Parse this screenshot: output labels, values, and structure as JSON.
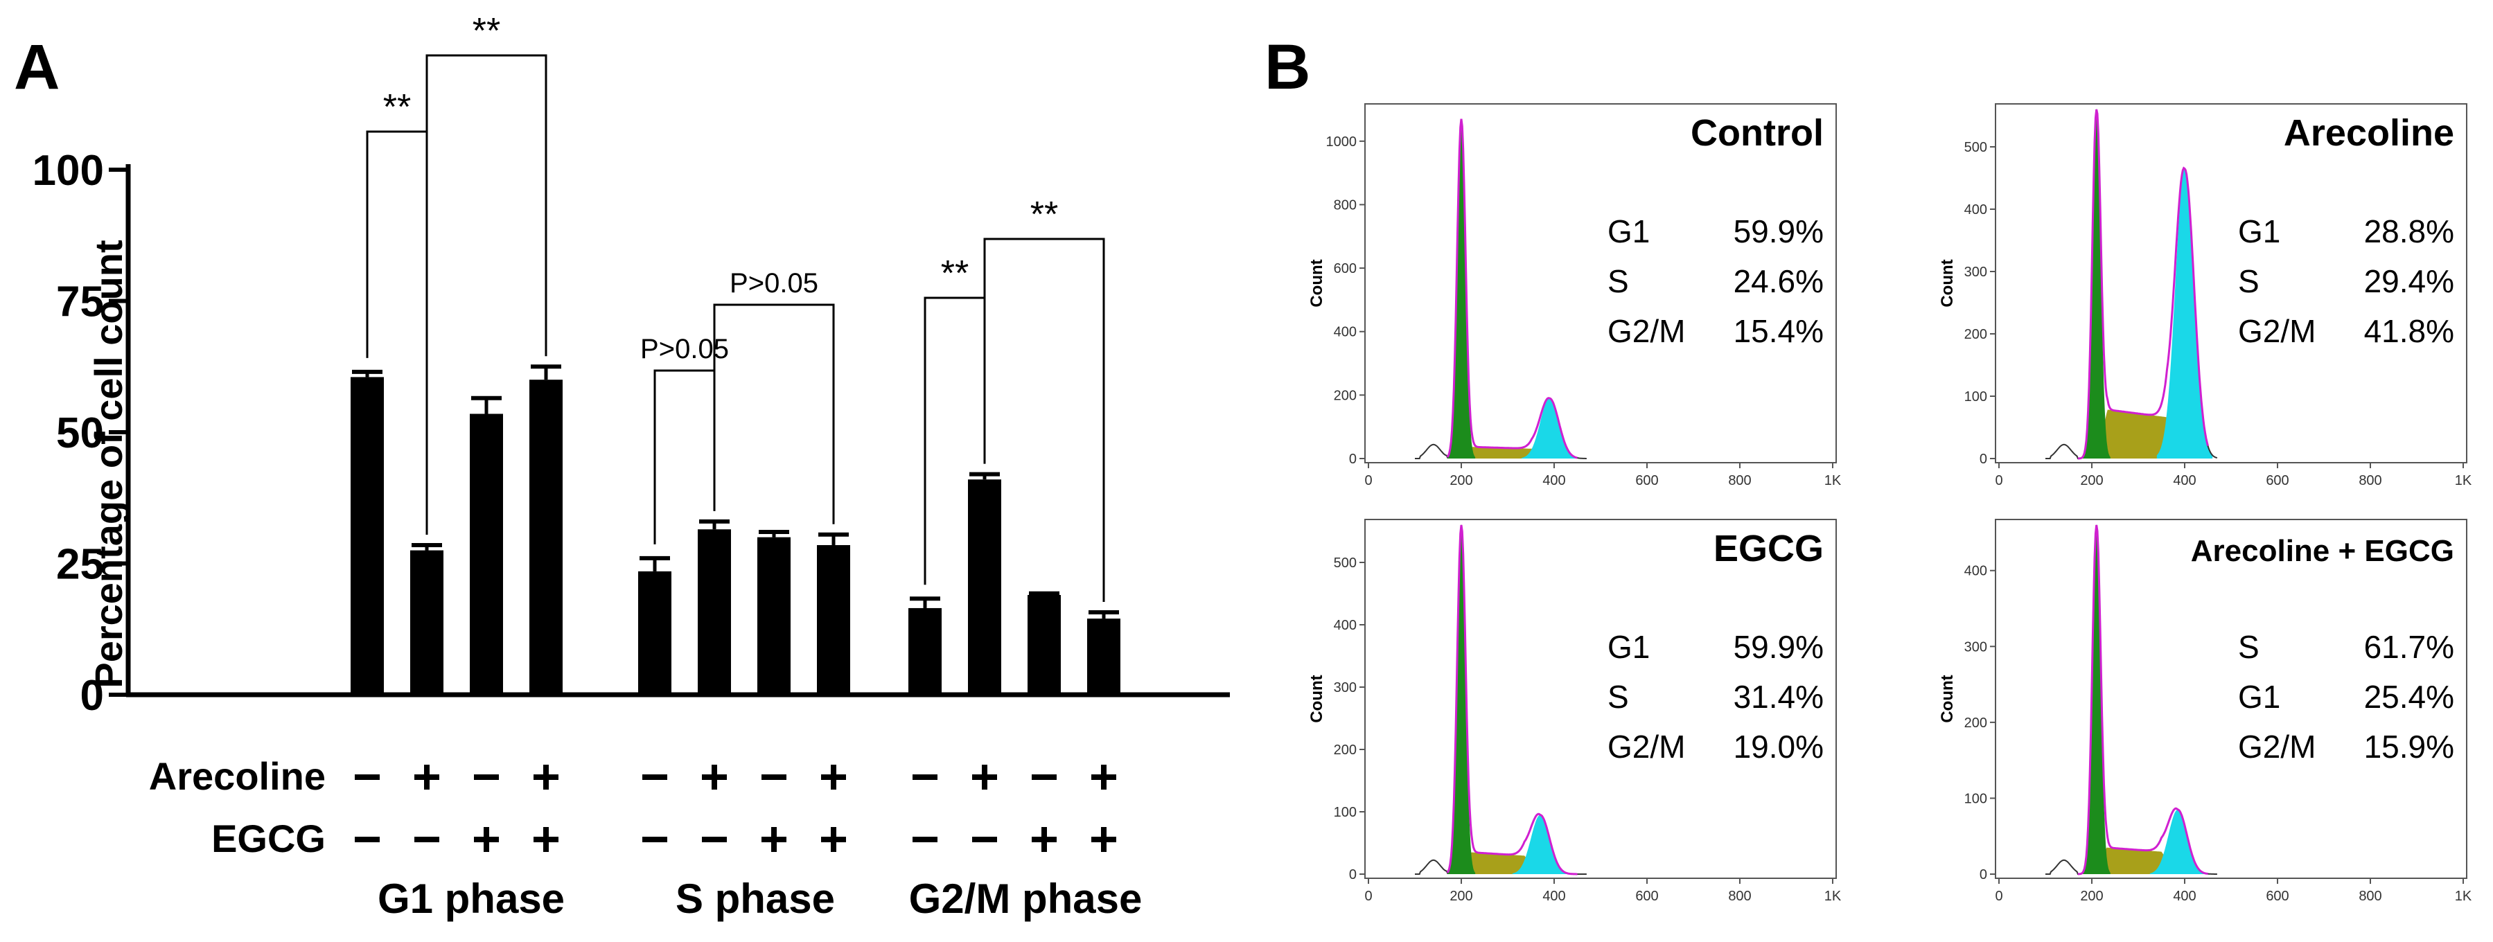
{
  "panel_a": {
    "letter": "A",
    "ylabel": "Percentage of cell count",
    "row_labels": [
      "Arecoline",
      "EGCG"
    ],
    "sig_double": "**",
    "sig_p_italic": "P",
    "sig_p_rest": ">0.05"
  },
  "panel_b": {
    "letter": "B",
    "count_label": "Count"
  },
  "chart_data": [
    {
      "type": "bar",
      "title": "",
      "xlabel": "",
      "ylabel": "Percentage of cell count",
      "ylim": [
        0,
        100
      ],
      "yticks": [
        0,
        25,
        50,
        75,
        100
      ],
      "groups": [
        "G1 phase",
        "S phase",
        "G2/M phase"
      ],
      "conditions": [
        {
          "arecoline": "-",
          "egcg": "-"
        },
        {
          "arecoline": "+",
          "egcg": "-"
        },
        {
          "arecoline": "-",
          "egcg": "+"
        },
        {
          "arecoline": "+",
          "egcg": "+"
        }
      ],
      "series": [
        {
          "group": "G1 phase",
          "values": [
            60.5,
            27.5,
            53.5,
            60
          ],
          "errors": [
            1,
            1,
            3,
            2.5
          ]
        },
        {
          "group": "S phase",
          "values": [
            23.5,
            31.5,
            30,
            28.5
          ],
          "errors": [
            2.5,
            1.5,
            1,
            2
          ]
        },
        {
          "group": "G2/M phase",
          "values": [
            16.5,
            41,
            19,
            14.5
          ],
          "errors": [
            1.8,
            1,
            0.3,
            1.2
          ]
        }
      ],
      "significance": [
        {
          "group": "G1 phase",
          "from": 0,
          "to": 1,
          "label": "**"
        },
        {
          "group": "G1 phase",
          "from": 1,
          "to": 3,
          "label": "**"
        },
        {
          "group": "S phase",
          "from": 0,
          "to": 1,
          "label": "P>0.05"
        },
        {
          "group": "S phase",
          "from": 1,
          "to": 3,
          "label": "P>0.05"
        },
        {
          "group": "G2/M phase",
          "from": 0,
          "to": 1,
          "label": "**"
        },
        {
          "group": "G2/M phase",
          "from": 1,
          "to": 3,
          "label": "**"
        }
      ]
    },
    {
      "type": "area",
      "title": "Control",
      "ylabel": "Count",
      "xticks": [
        "0",
        "200",
        "400",
        "600",
        "800",
        "1K"
      ],
      "ylim": [
        0,
        1100
      ],
      "yticks": [
        0,
        200,
        400,
        600,
        800,
        1000
      ],
      "g1_peak_x": 200,
      "g1_peak_count": 1070,
      "g2m_peak_x": 390,
      "g2m_peak_count": 190,
      "phases": [
        {
          "name": "G1",
          "value": "59.9%"
        },
        {
          "name": "S",
          "value": "24.6%"
        },
        {
          "name": "G2/M",
          "value": "15.4%"
        }
      ]
    },
    {
      "type": "area",
      "title": "Arecoline",
      "ylabel": "Count",
      "xticks": [
        "0",
        "200",
        "400",
        "600",
        "800",
        "1K"
      ],
      "ylim": [
        0,
        560
      ],
      "yticks": [
        0,
        100,
        200,
        300,
        400,
        500
      ],
      "g1_peak_x": 210,
      "g1_peak_count": 560,
      "g2m_peak_x": 400,
      "g2m_peak_count": 465,
      "phases": [
        {
          "name": "G1",
          "value": "28.8%"
        },
        {
          "name": "S",
          "value": "29.4%"
        },
        {
          "name": "G2/M",
          "value": "41.8%"
        }
      ]
    },
    {
      "type": "area",
      "title": "EGCG",
      "ylabel": "Count",
      "xticks": [
        "0",
        "200",
        "400",
        "600",
        "800",
        "1K"
      ],
      "ylim": [
        0,
        560
      ],
      "yticks": [
        0,
        100,
        200,
        300,
        400,
        500
      ],
      "g1_peak_x": 200,
      "g1_peak_count": 560,
      "g2m_peak_x": 370,
      "g2m_peak_count": 95,
      "phases": [
        {
          "name": "G1",
          "value": "59.9%"
        },
        {
          "name": "S",
          "value": "31.4%"
        },
        {
          "name": "G2/M",
          "value": "19.0%"
        }
      ]
    },
    {
      "type": "area",
      "title": "Arecoline + EGCG",
      "ylabel": "Count",
      "xticks": [
        "0",
        "200",
        "400",
        "600",
        "800",
        "1K"
      ],
      "ylim": [
        0,
        460
      ],
      "yticks": [
        0,
        100,
        200,
        300,
        400
      ],
      "g1_peak_x": 210,
      "g1_peak_count": 460,
      "g2m_peak_x": 385,
      "g2m_peak_count": 85,
      "phases": [
        {
          "name": "S",
          "value": "61.7%"
        },
        {
          "name": "G1",
          "value": "25.4%"
        },
        {
          "name": "G2/M",
          "value": "15.9%"
        }
      ]
    }
  ]
}
